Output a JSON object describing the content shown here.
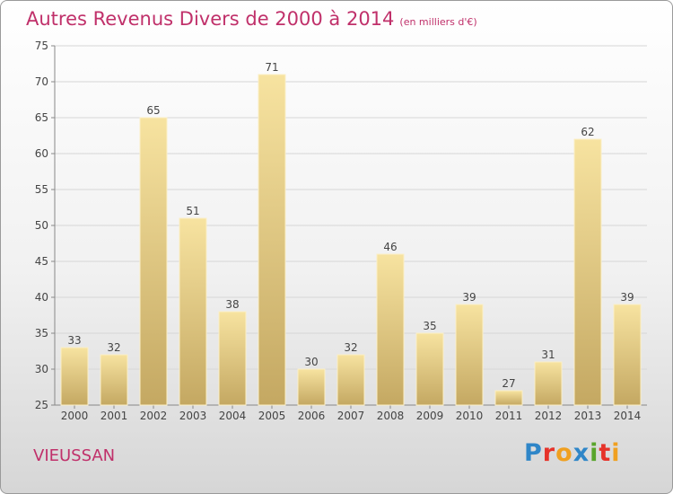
{
  "title": "Autres Revenus Divers de 2000 à 2014",
  "subtitle": "(en milliers d'€)",
  "location": "VIEUSSAN",
  "logo": {
    "text": "Proxiti",
    "letters": [
      {
        "char": "P",
        "color": "#2f86c8"
      },
      {
        "char": "r",
        "color": "#e6332a"
      },
      {
        "char": "o",
        "color": "#f0a020"
      },
      {
        "char": "x",
        "color": "#2f86c8"
      },
      {
        "char": "i",
        "color": "#59a52c"
      },
      {
        "char": "t",
        "color": "#e6332a"
      },
      {
        "char": "i",
        "color": "#f0a020"
      }
    ]
  },
  "colors": {
    "title": "#c0306a",
    "bar_light": "#f7e3a0",
    "bar_dark": "#c4a862",
    "grid": "#d6d6d6"
  },
  "chart_data": {
    "type": "bar",
    "categories": [
      "2000",
      "2001",
      "2002",
      "2003",
      "2004",
      "2005",
      "2006",
      "2007",
      "2008",
      "2009",
      "2010",
      "2011",
      "2012",
      "2013",
      "2014"
    ],
    "values": [
      33,
      32,
      65,
      51,
      38,
      71,
      30,
      32,
      46,
      35,
      39,
      27,
      31,
      62,
      39
    ],
    "ylim": [
      25,
      75
    ],
    "yticks": [
      25,
      30,
      35,
      40,
      45,
      50,
      55,
      60,
      65,
      70,
      75
    ],
    "grid": true,
    "title": "Autres Revenus Divers de 2000 à 2014",
    "xlabel": "",
    "ylabel": ""
  }
}
